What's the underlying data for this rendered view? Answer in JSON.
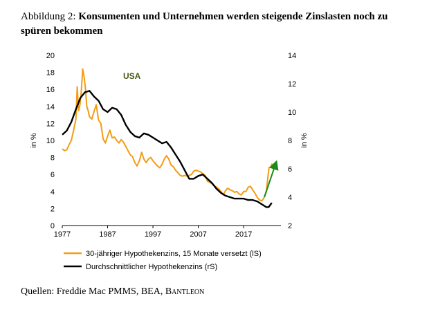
{
  "header": {
    "title_lead": "Abbildung 2: ",
    "title_main": "Konsumenten und Unternehmen werden steigende Zinslasten noch zu spüren bekommen"
  },
  "footer": {
    "source_prefix": "Quellen: Freddie Mac PMMS, BEA, ",
    "source_brand": "Bantleon"
  },
  "chart_data": {
    "type": "line",
    "annotation": "USA",
    "ylabel_left": "in %",
    "ylabel_right": "in %",
    "x_ticks": [
      1977,
      1987,
      1997,
      2007,
      2017
    ],
    "xlim": [
      1977,
      2024
    ],
    "ylim_left": [
      0,
      20
    ],
    "ylim_right": [
      2,
      14
    ],
    "y_ticks_left": [
      0,
      2,
      4,
      6,
      8,
      10,
      12,
      14,
      16,
      18,
      20
    ],
    "y_ticks_right": [
      2,
      4,
      6,
      8,
      10,
      12,
      14
    ],
    "colors": {
      "series_1": "#f39c12",
      "series_2": "#000000",
      "arrow": "#1a8a1a"
    },
    "legend_position": "bottom-left",
    "series": [
      {
        "name": "30-jähriger Hypothekenzins, 15 Monate versetzt (lS)",
        "axis": "left",
        "x": [
          1977,
          1977.5,
          1978,
          1978.5,
          1979,
          1979.5,
          1980,
          1980.3,
          1980.6,
          1980.9,
          1981.2,
          1981.5,
          1981.8,
          1982.1,
          1982.4,
          1982.7,
          1983,
          1983.5,
          1984,
          1984.5,
          1985,
          1985.5,
          1986,
          1986.5,
          1987,
          1987.5,
          1988,
          1988.5,
          1989,
          1989.5,
          1990,
          1990.5,
          1991,
          1991.5,
          1992,
          1992.5,
          1993,
          1993.5,
          1994,
          1994.5,
          1995,
          1995.5,
          1996,
          1996.5,
          1997,
          1997.5,
          1998,
          1998.5,
          1999,
          1999.5,
          2000,
          2000.5,
          2001,
          2001.5,
          2002,
          2002.5,
          2003,
          2003.5,
          2004,
          2004.5,
          2005,
          2005.5,
          2006,
          2006.5,
          2007,
          2007.5,
          2008,
          2008.5,
          2009,
          2009.5,
          2010,
          2010.5,
          2011,
          2011.5,
          2012,
          2012.5,
          2013,
          2013.5,
          2014,
          2014.5,
          2015,
          2015.5,
          2016,
          2016.5,
          2017,
          2017.5,
          2018,
          2018.5,
          2019,
          2019.5,
          2020,
          2020.5,
          2021,
          2021.3,
          2021.6,
          2022,
          2022.3,
          2022.6,
          2023,
          2023.3
        ],
        "y": [
          9.0,
          8.8,
          8.9,
          9.5,
          10.0,
          11.2,
          12.5,
          16.3,
          13.5,
          14.2,
          15.8,
          18.4,
          17.5,
          16.2,
          14.0,
          13.5,
          12.8,
          12.5,
          13.4,
          14.2,
          12.4,
          12.0,
          10.2,
          9.7,
          10.5,
          11.2,
          10.3,
          10.4,
          10.0,
          9.7,
          10.1,
          9.8,
          9.3,
          8.8,
          8.3,
          8.1,
          7.4,
          7.0,
          7.6,
          8.6,
          7.8,
          7.4,
          7.8,
          8.0,
          7.6,
          7.3,
          7.0,
          6.8,
          7.2,
          7.8,
          8.2,
          7.8,
          7.1,
          6.9,
          6.5,
          6.2,
          5.9,
          5.8,
          5.9,
          5.8,
          5.9,
          6.0,
          6.4,
          6.5,
          6.4,
          6.3,
          6.1,
          5.9,
          5.2,
          5.1,
          4.9,
          4.7,
          4.5,
          4.3,
          4.0,
          3.6,
          4.1,
          4.4,
          4.2,
          4.1,
          3.9,
          4.0,
          3.7,
          3.6,
          4.0,
          4.0,
          4.5,
          4.6,
          4.2,
          3.8,
          3.3,
          3.0,
          2.9,
          3.1,
          3.4,
          4.0,
          5.5,
          6.8,
          6.9,
          7.3
        ]
      },
      {
        "name": "Durchschnittlicher Hypothekenzins (rS)",
        "axis": "right",
        "x": [
          1977,
          1978,
          1979,
          1980,
          1981,
          1982,
          1983,
          1984,
          1985,
          1986,
          1987,
          1988,
          1989,
          1990,
          1991,
          1992,
          1993,
          1994,
          1995,
          1996,
          1997,
          1998,
          1999,
          2000,
          2001,
          2002,
          2003,
          2004,
          2005,
          2006,
          2007,
          2008,
          2009,
          2010,
          2011,
          2012,
          2013,
          2014,
          2015,
          2016,
          2017,
          2018,
          2019,
          2020,
          2021,
          2022,
          2022.5,
          2023.2
        ],
        "y": [
          8.4,
          8.7,
          9.3,
          10.2,
          11.0,
          11.4,
          11.5,
          11.1,
          10.8,
          10.2,
          10.0,
          10.3,
          10.2,
          9.8,
          9.1,
          8.6,
          8.3,
          8.2,
          8.5,
          8.4,
          8.2,
          8.0,
          7.8,
          7.9,
          7.5,
          7.0,
          6.5,
          5.9,
          5.3,
          5.3,
          5.5,
          5.6,
          5.3,
          5.0,
          4.6,
          4.3,
          4.1,
          4.0,
          3.9,
          3.9,
          3.9,
          3.8,
          3.8,
          3.7,
          3.5,
          3.3,
          3.3,
          3.6
        ]
      }
    ]
  }
}
